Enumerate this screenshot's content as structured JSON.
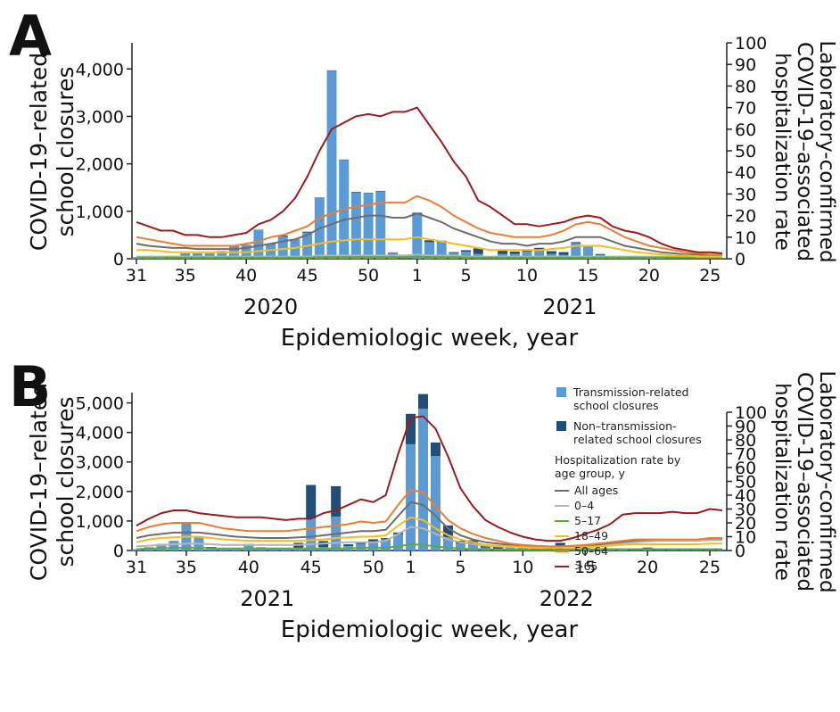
{
  "chart_data": [
    {
      "type": "combo",
      "panel_label": "A",
      "categories": [
        "31",
        null,
        null,
        null,
        "35",
        null,
        null,
        null,
        null,
        "40",
        null,
        null,
        null,
        null,
        "45",
        null,
        null,
        null,
        null,
        "50",
        null,
        null,
        null,
        "1",
        null,
        null,
        null,
        "5",
        null,
        null,
        null,
        null,
        "10",
        null,
        null,
        null,
        null,
        "15",
        null,
        null,
        null,
        null,
        "20",
        null,
        null,
        null,
        null,
        "25",
        null
      ],
      "years": [
        "2020",
        "2021"
      ],
      "x_label": "Epidemiologic week, year",
      "y_label": [
        "COVID-19–related",
        "school closures"
      ],
      "y2_label": [
        "Laboratory-confirmed",
        "COVID-19–associated",
        "hospitalization rate"
      ],
      "ylim": [
        0,
        4550
      ],
      "yticks": [
        0,
        {
          "value": 1000,
          "label": "1,000"
        },
        {
          "value": 2000,
          "label": "2,000"
        },
        {
          "value": 3000,
          "label": "3,000"
        },
        {
          "value": 4000,
          "label": "4,000"
        }
      ],
      "y2lim": [
        0,
        100
      ],
      "y2ticks": [
        0,
        10,
        20,
        30,
        40,
        50,
        60,
        70,
        80,
        90,
        100
      ],
      "legend": false,
      "series": [
        {
          "type": "bar",
          "color": "#5b9bd5",
          "values": [
            20,
            20,
            20,
            50,
            100,
            100,
            100,
            150,
            250,
            280,
            600,
            300,
            470,
            400,
            550,
            1280,
            3960,
            2080,
            1400,
            1380,
            1420,
            120,
            10,
            940,
            350,
            350,
            120,
            150,
            100,
            30,
            100,
            100,
            150,
            170,
            100,
            80,
            330,
            250,
            80,
            40,
            20,
            20,
            10,
            10,
            5,
            5,
            5,
            5,
            5
          ]
        },
        {
          "type": "bar",
          "color": "#1f4e79",
          "values": [
            10,
            10,
            10,
            10,
            10,
            10,
            10,
            10,
            10,
            10,
            10,
            10,
            20,
            10,
            20,
            10,
            10,
            10,
            10,
            10,
            10,
            10,
            10,
            30,
            40,
            30,
            20,
            30,
            120,
            20,
            80,
            50,
            50,
            60,
            60,
            60,
            20,
            20,
            20,
            10,
            10,
            10,
            10,
            10,
            5,
            5,
            5,
            5,
            5
          ]
        },
        {
          "type": "line",
          "axis": "y2",
          "color": "#6e6e6e",
          "values": [
            7,
            6,
            5.5,
            5,
            5,
            4.5,
            4.5,
            4.5,
            4.5,
            5,
            6,
            7,
            8,
            9,
            11,
            14,
            16,
            18,
            19,
            20,
            20,
            19,
            19,
            21,
            19,
            17,
            14,
            12,
            10,
            8,
            7,
            7,
            6,
            7,
            7,
            8,
            10,
            10,
            10,
            8,
            6,
            5,
            4,
            3,
            2.5,
            2,
            2,
            1.5,
            1.5
          ]
        },
        {
          "type": "line",
          "axis": "y2",
          "color": "#b4b4b4",
          "values": [
            1,
            1,
            1,
            1,
            1,
            1,
            1,
            1,
            1,
            1,
            1,
            1,
            1,
            1,
            1,
            1.5,
            1.5,
            1.5,
            1.5,
            1.5,
            1.5,
            1.5,
            1.5,
            2,
            1.5,
            1.5,
            1.5,
            1,
            1,
            1,
            1,
            1,
            1,
            1,
            1,
            1,
            1,
            1,
            1,
            1,
            1,
            1,
            1,
            1,
            1,
            1,
            1,
            1,
            1
          ]
        },
        {
          "type": "line",
          "axis": "y2",
          "color": "#5aad3c",
          "values": [
            0.5,
            0.5,
            0.5,
            0.5,
            0.5,
            0.5,
            0.5,
            0.5,
            0.5,
            0.5,
            0.5,
            0.5,
            0.5,
            0.5,
            0.5,
            0.7,
            0.8,
            0.8,
            0.8,
            0.8,
            0.8,
            0.8,
            0.8,
            1,
            0.8,
            0.8,
            0.7,
            0.6,
            0.5,
            0.5,
            0.5,
            0.5,
            0.5,
            0.5,
            0.5,
            0.5,
            0.5,
            0.5,
            0.5,
            0.5,
            0.5,
            0.5,
            0.5,
            0.5,
            0.5,
            0.5,
            0.5,
            0.5,
            0.5
          ]
        },
        {
          "type": "line",
          "axis": "y2",
          "color": "#f7bd1e",
          "values": [
            4,
            4,
            3.5,
            3,
            3,
            3,
            3,
            3,
            3,
            3,
            3.5,
            4,
            4.5,
            5,
            6,
            7,
            8,
            8.5,
            9,
            9,
            9,
            9,
            9,
            10,
            9,
            8,
            7,
            6,
            5,
            4,
            4,
            4,
            4,
            4,
            4.5,
            5,
            6,
            6,
            6,
            5,
            4,
            3,
            2.5,
            2,
            1.5,
            1.5,
            1,
            1,
            1
          ]
        },
        {
          "type": "line",
          "axis": "y2",
          "color": "#ed7d31",
          "values": [
            10,
            9,
            8,
            7,
            6,
            6,
            6,
            6,
            6,
            7,
            8,
            10,
            11,
            13,
            15,
            19,
            21,
            23,
            24,
            25,
            26,
            26,
            26,
            29,
            27,
            24,
            20,
            17,
            14,
            12,
            11,
            10,
            10,
            10,
            11,
            13,
            16,
            17,
            16,
            13,
            10,
            8,
            6,
            5,
            4,
            3,
            2.5,
            2,
            2
          ]
        },
        {
          "type": "line",
          "axis": "y2",
          "color": "#9b1c1c",
          "values": [
            17,
            15,
            13,
            13,
            11,
            11,
            10,
            10,
            11,
            12,
            16,
            18,
            22,
            28,
            38,
            50,
            60,
            63,
            66,
            67,
            66,
            68,
            68,
            70,
            62,
            54,
            45,
            38,
            27,
            24,
            20,
            16,
            16,
            15,
            16,
            17,
            19,
            20,
            19,
            15,
            13,
            12,
            10,
            7,
            5,
            4,
            3,
            3,
            2.5
          ]
        }
      ]
    },
    {
      "type": "combo",
      "panel_label": "B",
      "categories": [
        "31",
        null,
        null,
        null,
        "35",
        null,
        null,
        null,
        null,
        "40",
        null,
        null,
        null,
        null,
        "45",
        null,
        null,
        null,
        null,
        "50",
        null,
        null,
        "1",
        null,
        null,
        null,
        "5",
        null,
        null,
        null,
        null,
        "10",
        null,
        null,
        null,
        null,
        "15",
        null,
        null,
        null,
        null,
        "20",
        null,
        null,
        null,
        null,
        "25",
        null
      ],
      "years": [
        "2021",
        "2022"
      ],
      "x_label": "Epidemiologic week, year",
      "y_label": [
        "COVID-19–related",
        "school closures"
      ],
      "y2_label": [
        "Laboratory-confirmed",
        "COVID-19–associated",
        "hospitalization rate"
      ],
      "ylim": [
        0,
        5350
      ],
      "yticks": [
        0,
        {
          "value": 1000,
          "label": "1,000"
        },
        {
          "value": 2000,
          "label": "2,000"
        },
        {
          "value": 3000,
          "label": "3,000"
        },
        {
          "value": 4000,
          "label": "4,000"
        },
        {
          "value": 5000,
          "label": "5,000"
        }
      ],
      "y2lim": [
        0,
        100
      ],
      "y2ticks": [
        0,
        10,
        20,
        30,
        40,
        50,
        60,
        70,
        80,
        90,
        100
      ],
      "legend": true,
      "legend_title": "Hospitalization rate by age group, y",
      "series": [
        {
          "type": "bar",
          "name": "Transmission-related school closures",
          "color": "#5b9bd5",
          "values": [
            30,
            100,
            200,
            300,
            900,
            450,
            100,
            80,
            60,
            200,
            100,
            60,
            60,
            80,
            1080,
            120,
            1150,
            150,
            220,
            300,
            380,
            560,
            3600,
            4800,
            3200,
            450,
            250,
            200,
            100,
            50,
            150,
            50,
            50,
            50,
            30,
            20,
            150,
            30,
            20,
            20,
            10,
            60,
            10,
            10,
            10,
            10,
            10,
            10
          ]
        },
        {
          "type": "bar",
          "name": "Non–transmission-related school closures",
          "color": "#1f4e79",
          "values": [
            10,
            10,
            20,
            20,
            30,
            30,
            20,
            10,
            10,
            20,
            10,
            10,
            10,
            180,
            1140,
            200,
            1030,
            60,
            80,
            80,
            40,
            50,
            1030,
            500,
            460,
            400,
            80,
            150,
            80,
            100,
            40,
            50,
            60,
            40,
            230,
            20,
            60,
            20,
            20,
            20,
            20,
            40,
            20,
            20,
            20,
            20,
            20,
            20
          ]
        },
        {
          "type": "line",
          "axis": "y2",
          "name": "All ages",
          "color": "#6e6e6e",
          "values": [
            9,
            11,
            12,
            13,
            13,
            13,
            12,
            11,
            10,
            9.5,
            9,
            9,
            9,
            9.5,
            10,
            11,
            12,
            13,
            14,
            14,
            15,
            25,
            35,
            33,
            25,
            16,
            11,
            8,
            6,
            5,
            4,
            3,
            3,
            2.5,
            2.5,
            3,
            3.5,
            4,
            5,
            6,
            7,
            7,
            7,
            7,
            7,
            7,
            8,
            8
          ]
        },
        {
          "type": "line",
          "axis": "y2",
          "name": "0–4",
          "color": "#b4b4b4",
          "values": [
            3,
            3.5,
            4,
            4.5,
            5,
            5,
            4.5,
            4,
            4,
            4,
            4,
            4,
            4,
            4,
            4.5,
            5,
            5.5,
            6,
            6,
            6,
            7,
            12,
            17,
            16,
            12,
            8,
            6,
            4.5,
            3.5,
            3,
            2.5,
            2,
            2,
            2,
            2,
            2,
            2.5,
            3,
            4,
            5,
            6,
            6.5,
            7,
            7,
            7,
            7,
            7.5,
            7.5
          ]
        },
        {
          "type": "line",
          "axis": "y2",
          "name": "5–17",
          "color": "#5aad3c",
          "values": [
            1,
            1.5,
            1.5,
            2,
            2,
            2,
            1.5,
            1.5,
            1.5,
            1.5,
            1.5,
            1.5,
            1.5,
            1.5,
            1.5,
            1.5,
            1.5,
            1.5,
            2,
            2,
            2,
            3,
            4.5,
            4,
            3,
            2,
            1.5,
            1,
            1,
            0.8,
            0.7,
            0.6,
            0.6,
            0.6,
            0.6,
            0.7,
            0.8,
            1,
            1,
            1,
            1,
            1,
            1,
            1,
            1,
            1,
            1,
            1
          ]
        },
        {
          "type": "line",
          "axis": "y2",
          "name": "18–49",
          "color": "#f7bd1e",
          "values": [
            6,
            8,
            9,
            9.5,
            10,
            10,
            9,
            8,
            7.5,
            7,
            7,
            7,
            7,
            7,
            7.5,
            8,
            9,
            9.5,
            10,
            10,
            11,
            18,
            24,
            22,
            16,
            11,
            8,
            6,
            4,
            3.5,
            3,
            2.5,
            2,
            2,
            2,
            2,
            2.5,
            3,
            3.5,
            4,
            4.5,
            4.5,
            4.5,
            4.5,
            4.5,
            4.5,
            5,
            5
          ]
        },
        {
          "type": "line",
          "axis": "y2",
          "name": "50–64",
          "color": "#ed7d31",
          "values": [
            14,
            17,
            19,
            20,
            20,
            20,
            18,
            16,
            15,
            14,
            14,
            14,
            14,
            15,
            16,
            17,
            18,
            19,
            21,
            20,
            21,
            33,
            44,
            42,
            32,
            22,
            16,
            12,
            9,
            7,
            5,
            4,
            3.5,
            3,
            3,
            3.5,
            4,
            5,
            6,
            7,
            8,
            8,
            8,
            8,
            8,
            8,
            9,
            9
          ]
        },
        {
          "type": "line",
          "axis": "y2",
          "name": ">65",
          "color": "#9b1c1c",
          "values": [
            18,
            23,
            27,
            29,
            29,
            27,
            26,
            25,
            24,
            24,
            24,
            23,
            22,
            23,
            23,
            27,
            29,
            33,
            37,
            35,
            40,
            70,
            96,
            97,
            88,
            68,
            45,
            32,
            22,
            17,
            13,
            10,
            8,
            7,
            7,
            9,
            12,
            15,
            19,
            26,
            27,
            27,
            27,
            28,
            27,
            27,
            30,
            29
          ]
        }
      ]
    }
  ]
}
